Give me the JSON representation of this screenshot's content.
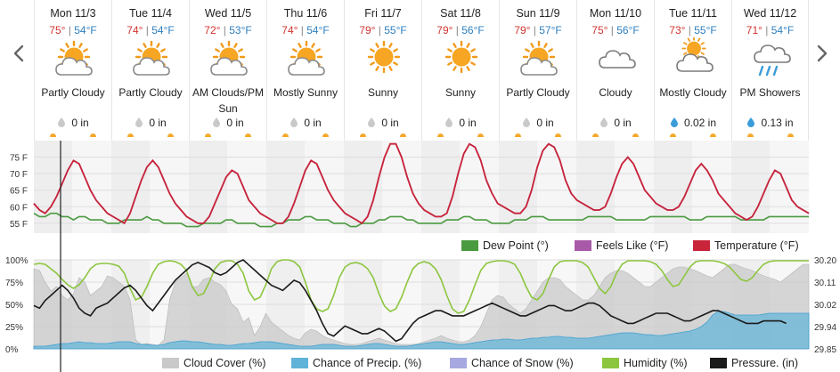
{
  "days": [
    {
      "name": "Mon 11/3",
      "hi": "75°",
      "lo": "54°F",
      "icon": "partly-cloudy-icon",
      "condition": "Partly Cloudy",
      "precip": "0 in",
      "drop": "gray"
    },
    {
      "name": "Tue 11/4",
      "hi": "74°",
      "lo": "54°F",
      "icon": "partly-cloudy-icon",
      "condition": "Partly Cloudy",
      "precip": "0 in",
      "drop": "gray"
    },
    {
      "name": "Wed 11/5",
      "hi": "72°",
      "lo": "53°F",
      "icon": "partly-cloudy-icon",
      "condition": "AM Clouds/PM Sun",
      "precip": "0 in",
      "drop": "gray"
    },
    {
      "name": "Thu 11/6",
      "hi": "74°",
      "lo": "54°F",
      "icon": "partly-cloudy-icon",
      "condition": "Mostly Sunny",
      "precip": "0 in",
      "drop": "gray"
    },
    {
      "name": "Fri 11/7",
      "hi": "79°",
      "lo": "55°F",
      "icon": "sunny-icon",
      "condition": "Sunny",
      "precip": "0 in",
      "drop": "gray"
    },
    {
      "name": "Sat 11/8",
      "hi": "79°",
      "lo": "56°F",
      "icon": "sunny-icon",
      "condition": "Sunny",
      "precip": "0 in",
      "drop": "gray"
    },
    {
      "name": "Sun 11/9",
      "hi": "79°",
      "lo": "57°F",
      "icon": "partly-cloudy-icon",
      "condition": "Partly Cloudy",
      "precip": "0 in",
      "drop": "gray"
    },
    {
      "name": "Mon 11/10",
      "hi": "75°",
      "lo": "56°F",
      "icon": "cloudy-icon",
      "condition": "Cloudy",
      "precip": "0 in",
      "drop": "gray"
    },
    {
      "name": "Tue 11/11",
      "hi": "73°",
      "lo": "55°F",
      "icon": "mostly-cloudy-icon",
      "condition": "Mostly Cloudy",
      "precip": "0.02 in",
      "drop": "blue"
    },
    {
      "name": "Wed 11/12",
      "hi": "71°",
      "lo": "54°F",
      "icon": "showers-icon",
      "condition": "PM Showers",
      "precip": "0.13 in",
      "drop": "blue"
    }
  ],
  "temp_chart": {
    "y_ticks": [
      "75 F",
      "70 F",
      "65 F",
      "60 F",
      "55 F"
    ],
    "y_values": [
      75,
      70,
      65,
      60,
      55
    ],
    "ylim": [
      52,
      80
    ],
    "temperature": [
      61,
      59,
      58,
      60,
      63,
      67,
      71,
      74,
      73,
      69,
      65,
      62,
      60,
      58,
      57,
      56,
      55,
      58,
      63,
      68,
      72,
      74,
      72,
      68,
      64,
      61,
      59,
      57,
      56,
      55,
      55,
      57,
      61,
      65,
      69,
      71,
      70,
      66,
      62,
      60,
      58,
      57,
      56,
      55,
      55,
      57,
      61,
      66,
      71,
      74,
      73,
      69,
      65,
      62,
      60,
      58,
      57,
      56,
      55,
      57,
      62,
      69,
      75,
      79,
      79,
      75,
      69,
      64,
      61,
      59,
      58,
      57,
      57,
      58,
      63,
      70,
      76,
      79,
      78,
      74,
      68,
      64,
      61,
      60,
      59,
      58,
      58,
      60,
      65,
      72,
      77,
      79,
      78,
      74,
      68,
      64,
      62,
      61,
      60,
      59,
      59,
      60,
      64,
      69,
      73,
      75,
      73,
      69,
      65,
      63,
      61,
      60,
      59,
      59,
      60,
      63,
      67,
      71,
      73,
      71,
      68,
      64,
      62,
      60,
      58,
      57,
      56,
      57,
      60,
      64,
      68,
      71,
      70,
      66,
      62,
      60,
      59,
      58
    ],
    "dew_point": [
      58,
      57,
      57,
      58,
      58,
      57,
      57,
      56,
      57,
      57,
      56,
      56,
      56,
      55,
      55,
      55,
      56,
      56,
      56,
      56,
      57,
      56,
      56,
      55,
      55,
      55,
      55,
      54,
      54,
      54,
      55,
      55,
      55,
      55,
      56,
      56,
      55,
      55,
      55,
      55,
      54,
      54,
      54,
      55,
      55,
      56,
      56,
      56,
      57,
      57,
      56,
      56,
      56,
      55,
      55,
      55,
      54,
      54,
      55,
      55,
      55,
      56,
      56,
      57,
      57,
      57,
      56,
      56,
      55,
      55,
      55,
      55,
      55,
      56,
      56,
      56,
      57,
      57,
      56,
      56,
      56,
      55,
      55,
      55,
      55,
      56,
      56,
      56,
      57,
      57,
      57,
      56,
      56,
      56,
      56,
      56,
      56,
      56,
      57,
      57,
      57,
      57,
      57,
      56,
      56,
      56,
      56,
      56,
      56,
      57,
      57,
      57,
      57,
      57,
      57,
      57,
      56,
      56,
      56,
      57,
      57,
      57,
      57,
      57,
      57,
      56,
      56,
      56,
      56,
      56,
      57,
      57,
      57,
      57,
      57,
      57,
      57,
      57
    ],
    "legend": [
      "Dew Point (°)",
      "Feels Like (°F)",
      "Temperature (°F)"
    ]
  },
  "bottom_chart": {
    "y_ticks_left": [
      "100%",
      "75%",
      "50%",
      "25%",
      "0%"
    ],
    "y_ticks_right": [
      "30.20",
      "30.11",
      "30.02",
      "29.94",
      "29.85"
    ],
    "cloud_cover": [
      90,
      88,
      75,
      65,
      70,
      60,
      55,
      62,
      80,
      75,
      60,
      65,
      70,
      82,
      80,
      75,
      70,
      55,
      10,
      5,
      6,
      5,
      4,
      10,
      55,
      75,
      80,
      85,
      70,
      70,
      78,
      80,
      75,
      72,
      65,
      50,
      45,
      30,
      35,
      15,
      25,
      40,
      30,
      25,
      20,
      15,
      12,
      10,
      18,
      22,
      20,
      15,
      12,
      10,
      8,
      6,
      5,
      5,
      6,
      8,
      10,
      12,
      10,
      8,
      6,
      5,
      5,
      5,
      6,
      8,
      10,
      12,
      15,
      12,
      10,
      8,
      8,
      10,
      15,
      25,
      40,
      55,
      60,
      58,
      50,
      45,
      40,
      45,
      55,
      65,
      75,
      80,
      80,
      78,
      70,
      65,
      60,
      55,
      55,
      60,
      70,
      80,
      85,
      88,
      88,
      85,
      80,
      75,
      70,
      70,
      75,
      80,
      85,
      90,
      92,
      92,
      90,
      88,
      85,
      82,
      80,
      85,
      90,
      95,
      95,
      92,
      90,
      88,
      85,
      82,
      80,
      78,
      75,
      80,
      85,
      90,
      95,
      95
    ],
    "precip_chance": [
      3,
      3,
      3,
      4,
      5,
      6,
      6,
      7,
      8,
      7,
      7,
      6,
      6,
      6,
      7,
      8,
      8,
      8,
      6,
      5,
      5,
      4,
      4,
      5,
      7,
      8,
      9,
      9,
      8,
      8,
      7,
      6,
      5,
      5,
      4,
      4,
      5,
      6,
      6,
      7,
      8,
      8,
      8,
      7,
      6,
      5,
      4,
      3,
      3,
      3,
      4,
      5,
      5,
      5,
      4,
      3,
      3,
      3,
      4,
      5,
      6,
      6,
      5,
      4,
      3,
      3,
      3,
      4,
      5,
      6,
      7,
      8,
      8,
      7,
      6,
      5,
      5,
      6,
      7,
      8,
      9,
      10,
      10,
      11,
      11,
      10,
      10,
      11,
      12,
      12,
      13,
      13,
      14,
      14,
      13,
      13,
      12,
      12,
      12,
      13,
      14,
      15,
      16,
      17,
      18,
      18,
      18,
      17,
      16,
      16,
      15,
      15,
      16,
      17,
      18,
      19,
      20,
      22,
      25,
      30,
      38,
      42,
      42,
      40,
      38,
      38,
      38,
      38,
      38,
      39,
      40,
      40,
      40,
      40,
      40,
      40,
      40,
      40
    ],
    "humidity": [
      95,
      96,
      95,
      90,
      85,
      78,
      72,
      68,
      72,
      80,
      90,
      95,
      96,
      96,
      95,
      93,
      85,
      68,
      55,
      58,
      70,
      85,
      95,
      98,
      99,
      98,
      95,
      88,
      70,
      60,
      62,
      75,
      90,
      97,
      99,
      99,
      95,
      85,
      65,
      55,
      58,
      72,
      90,
      98,
      100,
      100,
      98,
      92,
      75,
      55,
      45,
      42,
      45,
      60,
      80,
      92,
      96,
      97,
      95,
      90,
      80,
      62,
      48,
      42,
      45,
      58,
      75,
      90,
      96,
      98,
      96,
      90,
      78,
      60,
      45,
      40,
      42,
      55,
      72,
      88,
      96,
      98,
      99,
      99,
      98,
      95,
      85,
      70,
      58,
      55,
      62,
      78,
      92,
      98,
      99,
      99,
      99,
      97,
      92,
      80,
      68,
      62,
      70,
      85,
      95,
      99,
      99,
      99,
      99,
      98,
      95,
      88,
      78,
      70,
      72,
      82,
      92,
      98,
      99,
      99,
      99,
      98,
      96,
      92,
      85,
      78,
      76,
      80,
      88,
      95,
      98,
      99,
      99,
      99,
      99,
      99,
      99,
      99
    ],
    "pressure": [
      30.02,
      30.01,
      30.04,
      30.06,
      30.08,
      30.1,
      30.08,
      30.05,
      30.01,
      29.99,
      29.98,
      30.01,
      30.02,
      30.03,
      30.05,
      30.07,
      30.09,
      30.1,
      30.08,
      30.05,
      30.02,
      30.0,
      30.03,
      30.06,
      30.09,
      30.12,
      30.14,
      30.16,
      30.18,
      30.19,
      30.18,
      30.17,
      30.15,
      30.14,
      30.15,
      30.17,
      30.19,
      30.2,
      30.18,
      30.16,
      30.14,
      30.12,
      30.1,
      30.09,
      30.08,
      30.1,
      30.12,
      30.11,
      30.08,
      30.04,
      30.0,
      29.95,
      29.91,
      29.9,
      29.92,
      29.94,
      29.93,
      29.92,
      29.91,
      29.91,
      29.92,
      29.93,
      29.92,
      29.9,
      29.88,
      29.89,
      29.92,
      29.95,
      29.97,
      29.98,
      29.99,
      30.0,
      30.0,
      29.99,
      29.98,
      29.98,
      29.98,
      29.99,
      30.0,
      30.01,
      30.02,
      30.03,
      30.02,
      30.01,
      30.0,
      29.99,
      29.98,
      29.98,
      29.99,
      30.0,
      30.01,
      30.02,
      30.02,
      30.01,
      30.0,
      30.0,
      30.01,
      30.02,
      30.03,
      30.03,
      30.02,
      30.0,
      29.98,
      29.97,
      29.96,
      29.95,
      29.95,
      29.96,
      29.97,
      29.98,
      29.99,
      29.99,
      29.99,
      29.98,
      29.97,
      29.96,
      29.96,
      29.97,
      29.98,
      29.99,
      30.0,
      30.0,
      29.99,
      29.98,
      29.97,
      29.96,
      29.95,
      29.95,
      29.95,
      29.96,
      29.96,
      29.96,
      29.96,
      29.95
    ],
    "pressure_range": [
      29.85,
      30.2
    ],
    "legend": [
      "Cloud Cover (%)",
      "Chance of Precip. (%)",
      "Chance of Snow (%)",
      "Humidity (%)",
      "Pressure. (in)"
    ]
  },
  "colors": {
    "temperature": "#c8243a",
    "dew_point": "#4a9a40",
    "feels_like": "#a85aa8",
    "cloud": "#c9c9c9",
    "precip": "#5fb3d9",
    "snow": "#a8a8e0",
    "humidity": "#8cc63f",
    "pressure": "#1a1a1a"
  },
  "chart_data": [
    {
      "type": "line",
      "title": "",
      "ylabel": "",
      "ylim": [
        52,
        80
      ],
      "series": [
        {
          "name": "Temperature (°F)",
          "values_ref": "temp_chart.temperature"
        },
        {
          "name": "Dew Point (°)",
          "values_ref": "temp_chart.dew_point"
        },
        {
          "name": "Feels Like (°F)",
          "values_ref": "temp_chart.temperature"
        }
      ]
    },
    {
      "type": "area",
      "title": "",
      "ylim": [
        0,
        100
      ],
      "series": [
        {
          "name": "Cloud Cover (%)",
          "values_ref": "bottom_chart.cloud_cover"
        },
        {
          "name": "Chance of Precip. (%)",
          "values_ref": "bottom_chart.precip_chance"
        },
        {
          "name": "Chance of Snow (%)",
          "values_ref": "bottom_chart.precip_chance"
        },
        {
          "name": "Humidity (%)",
          "values_ref": "bottom_chart.humidity"
        },
        {
          "name": "Pressure. (in)",
          "values_ref": "bottom_chart.pressure"
        }
      ]
    }
  ]
}
